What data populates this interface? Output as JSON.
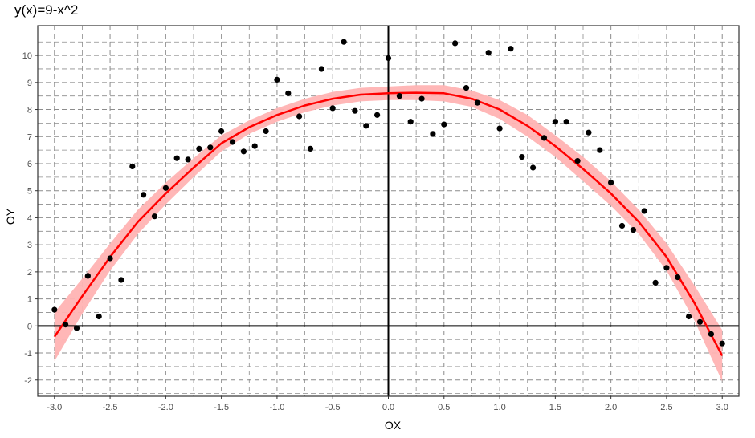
{
  "chart_data": {
    "type": "scatter",
    "title": "y(x)=9-x^2",
    "xlabel": "OX",
    "ylabel": "OY",
    "xlim": [
      -3.15,
      3.15
    ],
    "ylim": [
      -2.6,
      11.1
    ],
    "xticks": [
      -3.0,
      -2.5,
      -2.0,
      -1.5,
      -1.0,
      -0.5,
      0.0,
      0.5,
      1.0,
      1.5,
      2.0,
      2.5,
      3.0
    ],
    "xtick_labels": [
      "-3.0",
      "-2.5",
      "-2.0",
      "-1.5",
      "-1.0",
      "-0.5",
      "0.0",
      "0.5",
      "1.0",
      "1.5",
      "2.0",
      "2.5",
      "3.0"
    ],
    "yticks": [
      -2,
      -1,
      0,
      1,
      2,
      3,
      4,
      5,
      6,
      7,
      8,
      9,
      10
    ],
    "ytick_labels": [
      "-2",
      "-1",
      "0",
      "1",
      "2",
      "3",
      "4",
      "5",
      "6",
      "7",
      "8",
      "9",
      "10"
    ],
    "grid": true,
    "points": {
      "x": [
        -3.0,
        -2.9,
        -2.8,
        -2.7,
        -2.6,
        -2.5,
        -2.4,
        -2.3,
        -2.2,
        -2.1,
        -2.0,
        -1.9,
        -1.8,
        -1.7,
        -1.6,
        -1.5,
        -1.4,
        -1.3,
        -1.2,
        -1.1,
        -1.0,
        -0.9,
        -0.8,
        -0.7,
        -0.6,
        -0.5,
        -0.4,
        -0.3,
        -0.2,
        -0.1,
        0.0,
        0.1,
        0.2,
        0.3,
        0.4,
        0.5,
        0.6,
        0.7,
        0.8,
        0.9,
        1.0,
        1.1,
        1.2,
        1.3,
        1.4,
        1.5,
        1.6,
        1.7,
        1.8,
        1.9,
        2.0,
        2.1,
        2.2,
        2.3,
        2.4,
        2.5,
        2.6,
        2.7,
        2.8,
        2.9,
        3.0
      ],
      "y": [
        0.6,
        0.05,
        -0.08,
        1.85,
        0.35,
        2.5,
        1.7,
        5.9,
        4.85,
        4.05,
        5.1,
        6.2,
        6.15,
        6.55,
        6.6,
        7.2,
        6.8,
        6.45,
        6.65,
        7.2,
        9.1,
        8.6,
        7.75,
        6.55,
        9.5,
        8.05,
        10.5,
        7.95,
        7.4,
        7.8,
        9.9,
        8.5,
        7.55,
        8.4,
        7.1,
        7.45,
        10.45,
        8.8,
        8.25,
        10.1,
        7.3,
        10.25,
        6.25,
        5.85,
        6.95,
        7.55,
        7.55,
        6.1,
        7.15,
        6.5,
        5.3,
        3.7,
        3.55,
        4.25,
        1.6,
        2.15,
        1.8,
        0.35,
        0.15,
        -0.3,
        -0.65
      ]
    },
    "fit": {
      "x": [
        -3.0,
        -2.75,
        -2.5,
        -2.25,
        -2.0,
        -1.75,
        -1.5,
        -1.25,
        -1.0,
        -0.75,
        -0.5,
        -0.25,
        0.0,
        0.25,
        0.5,
        0.75,
        1.0,
        1.25,
        1.5,
        1.75,
        2.0,
        2.25,
        2.5,
        2.75,
        3.0
      ],
      "y": [
        -0.4,
        1.1,
        2.55,
        3.85,
        4.9,
        5.85,
        6.75,
        7.35,
        7.8,
        8.15,
        8.4,
        8.55,
        8.6,
        8.62,
        8.6,
        8.4,
        8.0,
        7.4,
        6.65,
        5.8,
        4.9,
        3.85,
        2.55,
        0.85,
        -1.1
      ],
      "lower": [
        -1.3,
        0.45,
        2.05,
        3.4,
        4.5,
        5.5,
        6.45,
        7.1,
        7.55,
        7.9,
        8.15,
        8.3,
        8.35,
        8.35,
        8.3,
        8.1,
        7.65,
        7.0,
        6.25,
        5.35,
        4.45,
        3.4,
        2.05,
        0.2,
        -2.05
      ],
      "upper": [
        0.5,
        1.75,
        3.05,
        4.3,
        5.3,
        6.2,
        7.05,
        7.6,
        8.05,
        8.4,
        8.65,
        8.8,
        8.85,
        8.9,
        8.9,
        8.7,
        8.35,
        7.8,
        7.05,
        6.25,
        5.35,
        4.3,
        3.05,
        1.5,
        -0.15
      ]
    },
    "colors": {
      "points": "#000000",
      "fit_line": "#ff0000",
      "ribbon": "#ffb3b3",
      "grid": "#8c8c8c",
      "panel_border": "#333333",
      "axis_lines": "#000000"
    }
  }
}
